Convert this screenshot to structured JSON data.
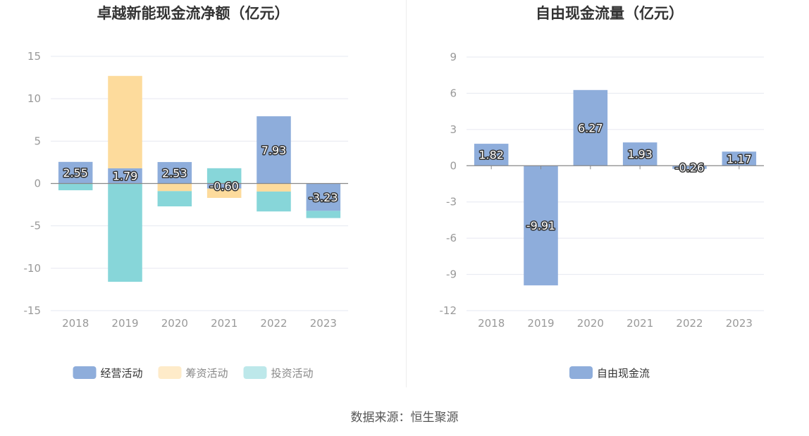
{
  "colors": {
    "operating": "#8eaddb",
    "financing": "#fddb9c",
    "investing": "#87d6d9",
    "free_cash_flow": "#8eaddb",
    "grid": "#e6e8f0",
    "axis_text": "#999999",
    "title": "#333333"
  },
  "source": "数据来源：恒生聚源",
  "chart_data": [
    {
      "type": "bar",
      "stacked": true,
      "title": "卓越新能现金流净额（亿元）",
      "categories": [
        "2018",
        "2019",
        "2020",
        "2021",
        "2022",
        "2023"
      ],
      "ylim": [
        -15,
        15
      ],
      "yticks": [
        15,
        10,
        5,
        0,
        -5,
        -10,
        -15
      ],
      "grid": true,
      "legend": "bottom-center",
      "series": [
        {
          "name": "经营活动",
          "color_key": "operating",
          "values": [
            2.55,
            1.79,
            2.53,
            -0.6,
            7.93,
            -3.23
          ]
        },
        {
          "name": "筹资活动",
          "color_key": "financing",
          "values": [
            0,
            10.9,
            -0.9,
            -1.1,
            -0.95,
            0
          ]
        },
        {
          "name": "投资活动",
          "color_key": "investing",
          "values": [
            -0.8,
            -11.6,
            -1.8,
            1.8,
            -2.35,
            -0.85
          ]
        }
      ],
      "data_labels": [
        "2.55",
        "1.79",
        "2.53",
        "-0.60",
        "7.93",
        "-3.23"
      ],
      "legend_entries": [
        {
          "name": "经营活动",
          "color_key": "operating",
          "faded": false
        },
        {
          "name": "筹资活动",
          "color_key": "financing",
          "faded": true
        },
        {
          "name": "投资活动",
          "color_key": "investing",
          "faded": true
        }
      ]
    },
    {
      "type": "bar",
      "title": "自由现金流量（亿元）",
      "categories": [
        "2018",
        "2019",
        "2020",
        "2021",
        "2022",
        "2023"
      ],
      "ylim": [
        -12,
        9
      ],
      "yticks": [
        9,
        6,
        3,
        0,
        -3,
        -6,
        -9,
        -12
      ],
      "grid": true,
      "legend": "bottom-center",
      "series": [
        {
          "name": "自由现金流",
          "color_key": "free_cash_flow",
          "values": [
            1.82,
            -9.91,
            6.27,
            1.93,
            -0.26,
            1.17
          ]
        }
      ],
      "data_labels": [
        "1.82",
        "-9.91",
        "6.27",
        "1.93",
        "-0.26",
        "1.17"
      ],
      "legend_entries": [
        {
          "name": "自由现金流",
          "color_key": "free_cash_flow",
          "faded": false
        }
      ]
    }
  ]
}
